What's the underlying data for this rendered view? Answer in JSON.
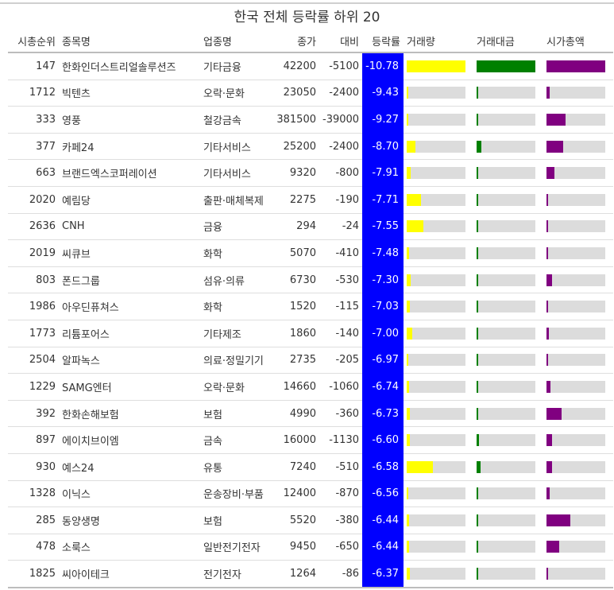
{
  "title": "한국 전체 등락률 하위 20",
  "columns": [
    "시총순위",
    "종목명",
    "업종명",
    "종가",
    "대비",
    "등락률",
    "거래량",
    "거래대금",
    "시가총액"
  ],
  "colors": {
    "rate_bg": "#0000ff",
    "volume": "#ffff00",
    "amount": "#008000",
    "marketcap": "#800080",
    "track": "#dcdcdc"
  },
  "chart_data": {
    "type": "table",
    "title": "한국 전체 등락률 하위 20",
    "rows": [
      {
        "rank": "147",
        "name": "한화인더스트리얼솔루션즈",
        "sector": "기타금융",
        "close": "42200",
        "change": "-5100",
        "rate": "-10.78",
        "volume": 1.0,
        "amount": 1.0,
        "marketcap": 1.0
      },
      {
        "rank": "1712",
        "name": "빅텐츠",
        "sector": "오락·문화",
        "close": "23050",
        "change": "-2400",
        "rate": "-9.43",
        "volume": 0.02,
        "amount": 0.02,
        "marketcap": 0.05
      },
      {
        "rank": "333",
        "name": "영풍",
        "sector": "철강금속",
        "close": "381500",
        "change": "-39000",
        "rate": "-9.27",
        "volume": 0.02,
        "amount": 0.03,
        "marketcap": 0.32
      },
      {
        "rank": "377",
        "name": "카페24",
        "sector": "기타서비스",
        "close": "25200",
        "change": "-2400",
        "rate": "-8.70",
        "volume": 0.15,
        "amount": 0.08,
        "marketcap": 0.29
      },
      {
        "rank": "663",
        "name": "브랜드엑스코퍼레이션",
        "sector": "기타서비스",
        "close": "9320",
        "change": "-800",
        "rate": "-7.91",
        "volume": 0.07,
        "amount": 0.03,
        "marketcap": 0.13
      },
      {
        "rank": "2020",
        "name": "예림당",
        "sector": "출판·매체복제",
        "close": "2275",
        "change": "-190",
        "rate": "-7.71",
        "volume": 0.24,
        "amount": 0.02,
        "marketcap": 0.03
      },
      {
        "rank": "2636",
        "name": "CNH",
        "sector": "금융",
        "close": "294",
        "change": "-24",
        "rate": "-7.55",
        "volume": 0.28,
        "amount": 0.01,
        "marketcap": 0.02
      },
      {
        "rank": "2019",
        "name": "씨큐브",
        "sector": "화학",
        "close": "5070",
        "change": "-410",
        "rate": "-7.48",
        "volume": 0.04,
        "amount": 0.01,
        "marketcap": 0.03
      },
      {
        "rank": "803",
        "name": "폰드그룹",
        "sector": "섬유·의류",
        "close": "6730",
        "change": "-530",
        "rate": "-7.30",
        "volume": 0.07,
        "amount": 0.02,
        "marketcap": 0.1
      },
      {
        "rank": "1986",
        "name": "아우딘퓨쳐스",
        "sector": "화학",
        "close": "1520",
        "change": "-115",
        "rate": "-7.03",
        "volume": 0.05,
        "amount": 0.01,
        "marketcap": 0.03
      },
      {
        "rank": "1773",
        "name": "리튬포어스",
        "sector": "기타제조",
        "close": "1860",
        "change": "-140",
        "rate": "-7.00",
        "volume": 0.1,
        "amount": 0.01,
        "marketcap": 0.04
      },
      {
        "rank": "2504",
        "name": "알파녹스",
        "sector": "의료·정밀기기",
        "close": "2735",
        "change": "-205",
        "rate": "-6.97",
        "volume": 0.03,
        "amount": 0.01,
        "marketcap": 0.02
      },
      {
        "rank": "1229",
        "name": "SAMG엔터",
        "sector": "오락·문화",
        "close": "14660",
        "change": "-1060",
        "rate": "-6.74",
        "volume": 0.04,
        "amount": 0.01,
        "marketcap": 0.07
      },
      {
        "rank": "392",
        "name": "한화손해보험",
        "sector": "보험",
        "close": "4990",
        "change": "-360",
        "rate": "-6.73",
        "volume": 0.05,
        "amount": 0.02,
        "marketcap": 0.26
      },
      {
        "rank": "897",
        "name": "에이치브이엠",
        "sector": "금속",
        "close": "16000",
        "change": "-1130",
        "rate": "-6.60",
        "volume": 0.05,
        "amount": 0.04,
        "marketcap": 0.09
      },
      {
        "rank": "930",
        "name": "예스24",
        "sector": "유통",
        "close": "7240",
        "change": "-510",
        "rate": "-6.58",
        "volume": 0.44,
        "amount": 0.07,
        "marketcap": 0.09
      },
      {
        "rank": "1328",
        "name": "이닉스",
        "sector": "운송장비·부품",
        "close": "12400",
        "change": "-870",
        "rate": "-6.56",
        "volume": 0.03,
        "amount": 0.01,
        "marketcap": 0.05
      },
      {
        "rank": "285",
        "name": "동양생명",
        "sector": "보험",
        "close": "5520",
        "change": "-380",
        "rate": "-6.44",
        "volume": 0.04,
        "amount": 0.01,
        "marketcap": 0.41
      },
      {
        "rank": "478",
        "name": "소룩스",
        "sector": "일반전기전자",
        "close": "9450",
        "change": "-650",
        "rate": "-6.44",
        "volume": 0.04,
        "amount": 0.02,
        "marketcap": 0.21
      },
      {
        "rank": "1825",
        "name": "씨아이테크",
        "sector": "전기전자",
        "close": "1264",
        "change": "-86",
        "rate": "-6.37",
        "volume": 0.06,
        "amount": 0.01,
        "marketcap": 0.03
      }
    ]
  }
}
